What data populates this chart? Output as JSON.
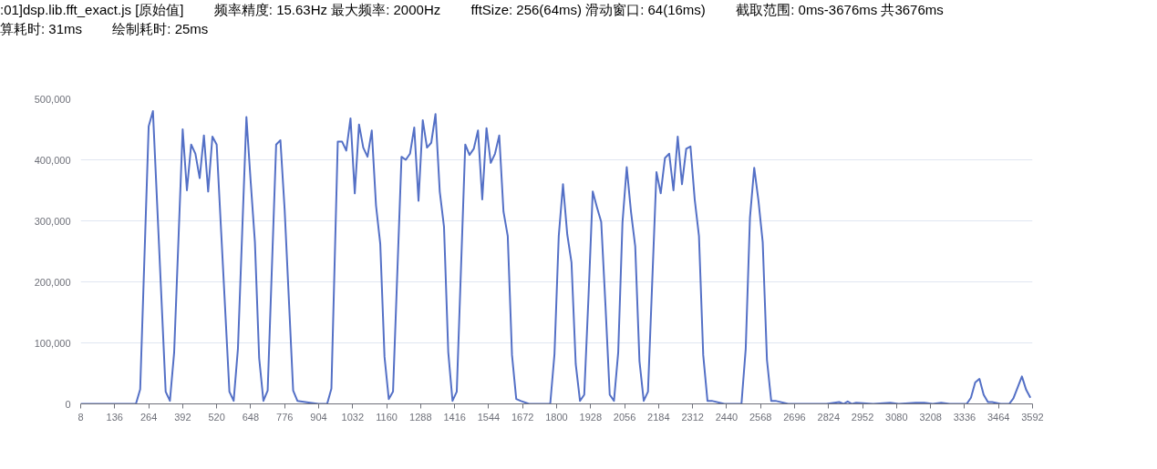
{
  "chart_data": {
    "type": "line",
    "title": ":01]dsp.lib.fft_exact.js [原始值]        频率精度: 15.63Hz 最大频率: 2000Hz        fftSize: 256(64ms) 滑动窗口: 64(16ms)        截取范围: 0ms-3676ms 共3676ms",
    "subtitle": "算耗时: 31ms        绘制耗时: 25ms",
    "series": [
      {
        "color": "#5470c6",
        "x": [
          8,
          136,
          216,
          232,
          264,
          280,
          328,
          344,
          360,
          392,
          408,
          424,
          440,
          456,
          472,
          488,
          504,
          520,
          568,
          584,
          600,
          632,
          648,
          664,
          680,
          696,
          712,
          744,
          760,
          776,
          808,
          824,
          872,
          904,
          936,
          952,
          976,
          992,
          1008,
          1024,
          1040,
          1056,
          1072,
          1088,
          1104,
          1120,
          1136,
          1152,
          1168,
          1184,
          1216,
          1232,
          1248,
          1264,
          1280,
          1296,
          1312,
          1328,
          1344,
          1360,
          1376,
          1392,
          1408,
          1424,
          1456,
          1472,
          1488,
          1504,
          1520,
          1536,
          1552,
          1568,
          1584,
          1600,
          1616,
          1632,
          1648,
          1664,
          1696,
          1776,
          1792,
          1808,
          1824,
          1840,
          1856,
          1872,
          1888,
          1904,
          1920,
          1936,
          1952,
          1968,
          1984,
          2000,
          2016,
          2032,
          2048,
          2064,
          2080,
          2096,
          2112,
          2128,
          2144,
          2176,
          2192,
          2208,
          2224,
          2240,
          2256,
          2272,
          2288,
          2304,
          2320,
          2336,
          2352,
          2368,
          2384,
          2432,
          2496,
          2512,
          2528,
          2544,
          2560,
          2576,
          2592,
          2608,
          2624,
          2672,
          2688,
          2816,
          2864,
          2880,
          2896,
          2912,
          2928,
          2992,
          3056,
          3088,
          3152,
          3184,
          3216,
          3248,
          3280,
          3312,
          3344,
          3360,
          3376,
          3392,
          3408,
          3424,
          3440,
          3472,
          3504,
          3520,
          3536,
          3552,
          3568,
          3584
        ],
        "values": [
          0,
          0,
          0,
          24000,
          455000,
          480000,
          20000,
          5000,
          85000,
          450000,
          350000,
          425000,
          410000,
          370000,
          440000,
          348000,
          438000,
          425000,
          20000,
          5000,
          90000,
          470000,
          365000,
          265000,
          75000,
          5000,
          22000,
          425000,
          432000,
          318000,
          22000,
          5000,
          2000,
          0,
          0,
          25000,
          430000,
          430000,
          415000,
          468000,
          345000,
          458000,
          420000,
          405000,
          448000,
          325000,
          262000,
          77000,
          8000,
          20000,
          405000,
          400000,
          410000,
          453000,
          333000,
          465000,
          420000,
          428000,
          475000,
          348000,
          290000,
          85000,
          5000,
          20000,
          425000,
          408000,
          418000,
          448000,
          335000,
          452000,
          395000,
          410000,
          440000,
          315000,
          275000,
          80000,
          8000,
          5000,
          0,
          0,
          82000,
          275000,
          360000,
          278000,
          232000,
          65000,
          5000,
          15000,
          175000,
          348000,
          322000,
          298000,
          161000,
          15000,
          5000,
          85000,
          297000,
          388000,
          315000,
          258000,
          70000,
          5000,
          20000,
          380000,
          345000,
          403000,
          410000,
          350000,
          438000,
          360000,
          418000,
          422000,
          335000,
          275000,
          80000,
          5000,
          5000,
          0,
          0,
          90000,
          305000,
          387000,
          333000,
          265000,
          72000,
          5000,
          5000,
          0,
          0,
          0,
          3000,
          0,
          4000,
          0,
          2000,
          0,
          2000,
          0,
          2000,
          2000,
          0,
          2000,
          0,
          0,
          0,
          10000,
          35000,
          41000,
          15000,
          3000,
          3000,
          0,
          0,
          9000,
          27000,
          45000,
          23000,
          10000
        ]
      }
    ],
    "xlim": [
      8,
      3592
    ],
    "ylim": [
      0,
      500000
    ],
    "xticks": [
      8,
      136,
      264,
      392,
      520,
      648,
      776,
      904,
      1032,
      1160,
      1288,
      1416,
      1544,
      1672,
      1800,
      1928,
      2056,
      2184,
      2312,
      2440,
      2568,
      2696,
      2824,
      2952,
      3080,
      3208,
      3336,
      3464,
      3592
    ],
    "yticks": [
      {
        "value": 0,
        "label": "0"
      },
      {
        "value": 100000,
        "label": "100,000"
      },
      {
        "value": 200000,
        "label": "200,000"
      },
      {
        "value": 300000,
        "label": "300,000"
      },
      {
        "value": 400000,
        "label": "400,000"
      },
      {
        "value": 500000,
        "label": "500,000"
      }
    ],
    "grid": "y",
    "marker": "none",
    "line_style": "solid"
  }
}
